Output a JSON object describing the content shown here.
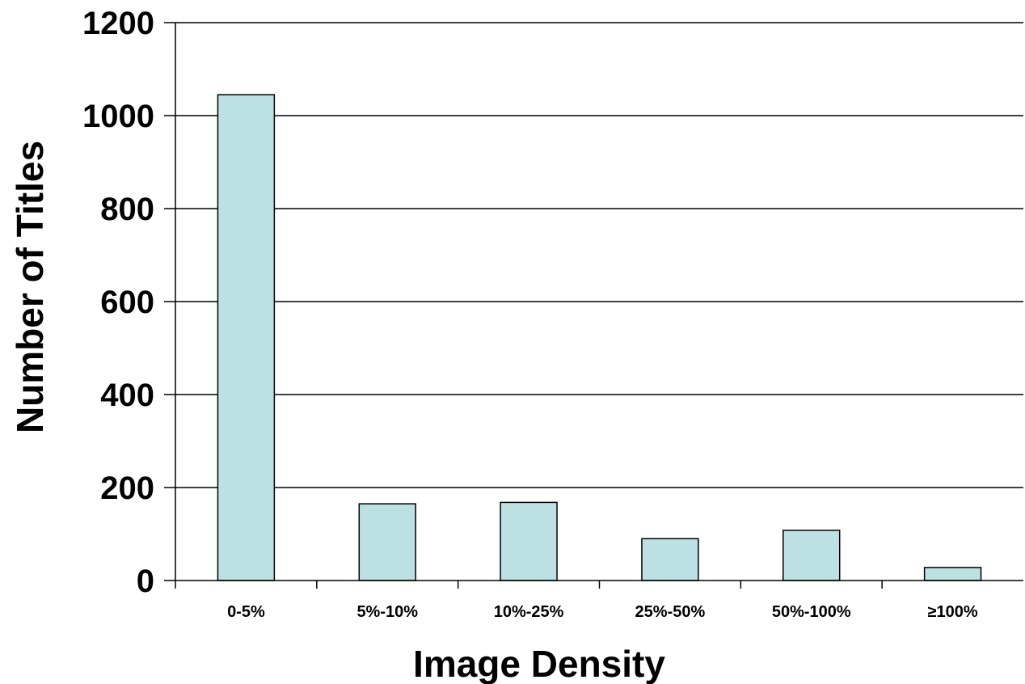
{
  "chart_data": {
    "type": "bar",
    "title": "",
    "xlabel": "Image Density",
    "ylabel": "Number of Titles",
    "categories": [
      "0-5%",
      "5%-10%",
      "10%-25%",
      "25%-50%",
      "50%-100%",
      "≥100%"
    ],
    "values": [
      1045,
      165,
      168,
      90,
      108,
      28
    ],
    "ylim": [
      0,
      1200
    ],
    "yticks": [
      0,
      200,
      400,
      600,
      800,
      1000,
      1200
    ],
    "grid": "horizontal",
    "legend": "none",
    "colors": {
      "bar_fill": "#bde0e2",
      "bar_stroke": "#000000",
      "grid": "#000000",
      "axis": "#000000",
      "background": "#ffffff"
    }
  }
}
